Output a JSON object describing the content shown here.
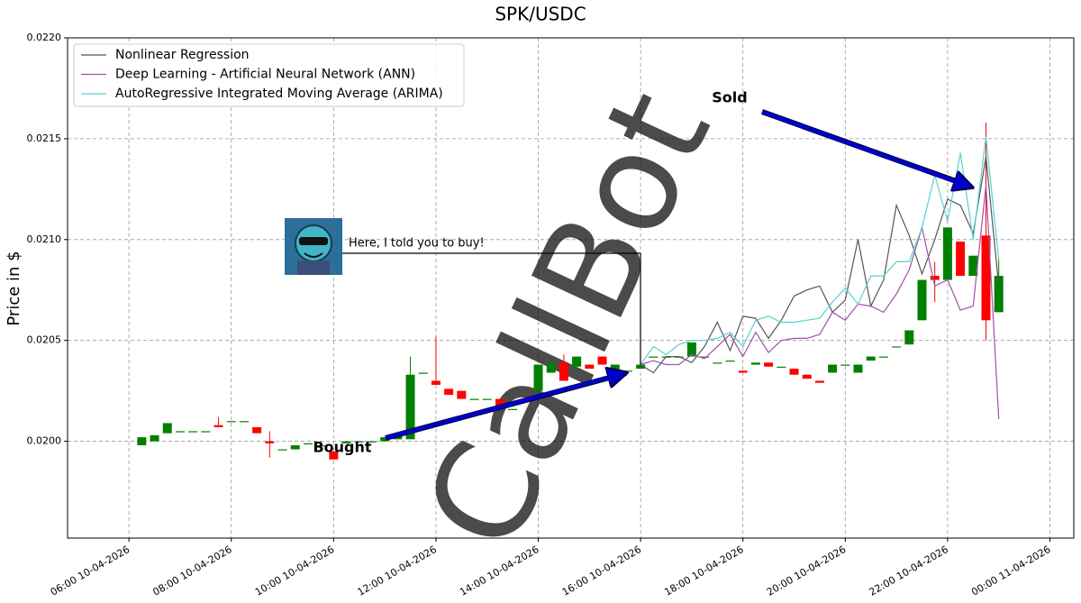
{
  "chart_data": {
    "type": "candlestick",
    "title": "SPK/USDC",
    "y_label": "Price in $",
    "x": [
      "06:15 10-04-2026",
      "06:30 10-04-2026",
      "06:45 10-04-2026",
      "07:00 10-04-2026",
      "07:15 10-04-2026",
      "07:30 10-04-2026",
      "07:45 10-04-2026",
      "08:00 10-04-2026",
      "08:15 10-04-2026",
      "08:30 10-04-2026",
      "08:45 10-04-2026",
      "09:00 10-04-2026",
      "09:15 10-04-2026",
      "09:30 10-04-2026",
      "09:45 10-04-2026",
      "10:00 10-04-2026",
      "10:15 10-04-2026",
      "10:30 10-04-2026",
      "10:45 10-04-2026",
      "11:00 10-04-2026",
      "11:15 10-04-2026",
      "11:30 10-04-2026",
      "11:45 10-04-2026",
      "12:00 10-04-2026",
      "12:15 10-04-2026",
      "12:30 10-04-2026",
      "12:45 10-04-2026",
      "13:00 10-04-2026",
      "13:15 10-04-2026",
      "13:30 10-04-2026",
      "13:45 10-04-2026",
      "14:00 10-04-2026",
      "14:15 10-04-2026",
      "14:30 10-04-2026",
      "14:45 10-04-2026",
      "15:00 10-04-2026",
      "15:15 10-04-2026",
      "15:30 10-04-2026",
      "15:45 10-04-2026",
      "16:00 10-04-2026",
      "16:15 10-04-2026",
      "16:30 10-04-2026",
      "16:45 10-04-2026",
      "17:00 10-04-2026",
      "17:15 10-04-2026",
      "17:30 10-04-2026",
      "17:45 10-04-2026",
      "18:00 10-04-2026",
      "18:15 10-04-2026",
      "18:30 10-04-2026",
      "18:45 10-04-2026",
      "19:00 10-04-2026",
      "19:15 10-04-2026",
      "19:30 10-04-2026",
      "19:45 10-04-2026",
      "20:00 10-04-2026",
      "20:15 10-04-2026",
      "20:30 10-04-2026",
      "20:45 10-04-2026",
      "21:00 10-04-2026",
      "21:15 10-04-2026",
      "21:30 10-04-2026",
      "21:45 10-04-2026",
      "22:00 10-04-2026",
      "22:15 10-04-2026",
      "22:30 10-04-2026",
      "22:45 10-04-2026",
      "23:00 10-04-2026"
    ],
    "open": [
      0.01998,
      0.02,
      0.02004,
      0.02005,
      0.02005,
      0.02005,
      0.02008,
      0.0201,
      0.0201,
      0.02007,
      0.02,
      0.01996,
      0.01996,
      0.01999,
      0.01998,
      0.01995,
      0.01999,
      0.02,
      0.02,
      0.02,
      0.02001,
      0.02001,
      0.02034,
      0.0203,
      0.02026,
      0.02025,
      0.02021,
      0.02021,
      0.02021,
      0.02016,
      0.02021,
      0.02025,
      0.02034,
      0.02039,
      0.02037,
      0.02038,
      0.02042,
      0.02034,
      0.02035,
      0.02036,
      0.02042,
      0.02042,
      0.02042,
      0.02042,
      0.02042,
      0.02039,
      0.0204,
      0.02035,
      0.02038,
      0.02039,
      0.02037,
      0.02036,
      0.02033,
      0.0203,
      0.02034,
      0.02038,
      0.02034,
      0.0204,
      0.02042,
      0.02047,
      0.02048,
      0.0206,
      0.02082,
      0.0208,
      0.02099,
      0.02082,
      0.02102,
      0.02064
    ],
    "high": [
      0.02002,
      0.02003,
      0.02009,
      0.02005,
      0.02005,
      0.02005,
      0.02012,
      0.0201,
      0.0201,
      0.02007,
      0.02005,
      0.01996,
      0.01998,
      0.01999,
      0.01998,
      0.01995,
      0.02,
      0.02,
      0.02,
      0.02002,
      0.02003,
      0.02042,
      0.02034,
      0.02052,
      0.02026,
      0.02025,
      0.02021,
      0.02021,
      0.02021,
      0.02016,
      0.02021,
      0.02038,
      0.02039,
      0.02043,
      0.02042,
      0.02038,
      0.02042,
      0.02038,
      0.02035,
      0.02038,
      0.02042,
      0.02042,
      0.02042,
      0.02049,
      0.02042,
      0.02039,
      0.0204,
      0.02035,
      0.02039,
      0.02039,
      0.02037,
      0.02036,
      0.02033,
      0.0203,
      0.02038,
      0.02038,
      0.02038,
      0.02042,
      0.02042,
      0.02047,
      0.02055,
      0.0208,
      0.02089,
      0.02106,
      0.02099,
      0.02092,
      0.02158,
      0.0209
    ],
    "low": [
      0.01998,
      0.02,
      0.02004,
      0.02005,
      0.02005,
      0.02005,
      0.02007,
      0.0201,
      0.0201,
      0.02004,
      0.01992,
      0.01996,
      0.01996,
      0.01999,
      0.01998,
      0.01991,
      0.01999,
      0.02,
      0.02,
      0.02,
      0.02001,
      0.02001,
      0.02034,
      0.02028,
      0.02023,
      0.02021,
      0.02021,
      0.02021,
      0.02017,
      0.02016,
      0.02021,
      0.02025,
      0.02034,
      0.0203,
      0.02037,
      0.02036,
      0.02038,
      0.02034,
      0.02035,
      0.02036,
      0.02042,
      0.02042,
      0.02042,
      0.02042,
      0.02042,
      0.02039,
      0.0204,
      0.02034,
      0.02038,
      0.02037,
      0.02037,
      0.02033,
      0.02031,
      0.02029,
      0.02034,
      0.02038,
      0.02034,
      0.0204,
      0.02042,
      0.02047,
      0.02048,
      0.0206,
      0.02069,
      0.0208,
      0.02082,
      0.02082,
      0.0205,
      0.02064
    ],
    "close": [
      0.02002,
      0.02003,
      0.02009,
      0.02005,
      0.02005,
      0.02005,
      0.02007,
      0.0201,
      0.0201,
      0.02004,
      0.01999,
      0.01996,
      0.01998,
      0.01999,
      0.01998,
      0.01991,
      0.02,
      0.02,
      0.02,
      0.02002,
      0.02003,
      0.02033,
      0.02034,
      0.02028,
      0.02023,
      0.02021,
      0.02021,
      0.02021,
      0.02017,
      0.02016,
      0.02021,
      0.02038,
      0.02039,
      0.0203,
      0.02042,
      0.02036,
      0.02038,
      0.02038,
      0.02035,
      0.02038,
      0.02042,
      0.02042,
      0.02042,
      0.02049,
      0.02042,
      0.02039,
      0.0204,
      0.02034,
      0.02039,
      0.02037,
      0.02037,
      0.02033,
      0.02031,
      0.02029,
      0.02038,
      0.02038,
      0.02038,
      0.02042,
      0.02042,
      0.02047,
      0.02055,
      0.0208,
      0.0208,
      0.02106,
      0.02082,
      0.02092,
      0.0206,
      0.02082
    ],
    "up_color": "#008000",
    "down_color": "#ff0000",
    "series": [
      {
        "name": "Nonlinear Regression",
        "color": "#555555",
        "values": [
          null,
          null,
          null,
          null,
          null,
          null,
          null,
          null,
          null,
          null,
          null,
          null,
          null,
          null,
          null,
          null,
          null,
          null,
          null,
          null,
          null,
          null,
          null,
          null,
          null,
          null,
          null,
          null,
          null,
          null,
          null,
          null,
          null,
          null,
          null,
          null,
          null,
          null,
          null,
          0.02038,
          0.02034,
          0.02042,
          0.02042,
          0.02039,
          0.02047,
          0.02059,
          0.02045,
          0.02062,
          0.02061,
          0.02051,
          0.0206,
          0.02072,
          0.02075,
          0.02077,
          0.02064,
          0.0207,
          0.021,
          0.02067,
          0.0208,
          0.02117,
          0.02102,
          0.02083,
          0.021,
          0.0212,
          0.02117,
          0.02103,
          0.02141,
          0.02077
        ]
      },
      {
        "name": "Deep Learning - Artificial Neural Network (ANN)",
        "color": "#a24fa8",
        "values": [
          null,
          null,
          null,
          null,
          null,
          null,
          null,
          null,
          null,
          null,
          null,
          null,
          null,
          null,
          null,
          null,
          null,
          null,
          null,
          null,
          null,
          null,
          null,
          null,
          null,
          null,
          null,
          null,
          null,
          null,
          null,
          null,
          null,
          null,
          null,
          null,
          null,
          null,
          null,
          0.02038,
          0.0204,
          0.02038,
          0.02038,
          0.02043,
          0.02041,
          0.02047,
          0.02053,
          0.02042,
          0.02054,
          0.02044,
          0.0205,
          0.02051,
          0.02051,
          0.02053,
          0.02064,
          0.0206,
          0.02068,
          0.02067,
          0.02064,
          0.02073,
          0.02085,
          0.02106,
          0.02077,
          0.0208,
          0.02065,
          0.02067,
          0.02127,
          0.02011
        ]
      },
      {
        "name": "AutoRegressive Integrated Moving Average (ARIMA)",
        "color": "#5fcfd0",
        "values": [
          null,
          null,
          null,
          null,
          null,
          null,
          null,
          null,
          null,
          null,
          null,
          null,
          null,
          null,
          null,
          null,
          null,
          null,
          null,
          null,
          null,
          null,
          null,
          null,
          null,
          null,
          null,
          null,
          null,
          null,
          null,
          null,
          null,
          null,
          null,
          null,
          null,
          null,
          null,
          0.02038,
          0.02047,
          0.02043,
          0.02048,
          0.0205,
          0.0205,
          0.02051,
          0.02054,
          0.02047,
          0.0206,
          0.02062,
          0.02059,
          0.02059,
          0.0206,
          0.02061,
          0.02069,
          0.02076,
          0.02068,
          0.02082,
          0.02082,
          0.02089,
          0.02089,
          0.02106,
          0.02132,
          0.02109,
          0.02143,
          0.021,
          0.02151,
          0.0209
        ]
      }
    ],
    "xlim": [
      "04:48 10-04-2026",
      "00:28 11-04-2026"
    ],
    "xticks": [
      "06:00 10-04-2026",
      "08:00 10-04-2026",
      "10:00 10-04-2026",
      "12:00 10-04-2026",
      "14:00 10-04-2026",
      "16:00 10-04-2026",
      "18:00 10-04-2026",
      "20:00 10-04-2026",
      "22:00 10-04-2026",
      "00:00 11-04-2026"
    ],
    "ylim": [
      0.01952,
      0.022
    ],
    "yticks": [
      {
        "value": 0.02,
        "label": "0.0200"
      },
      {
        "value": 0.0205,
        "label": "0.0205"
      },
      {
        "value": 0.021,
        "label": "0.0210"
      },
      {
        "value": 0.0215,
        "label": "0.0215"
      },
      {
        "value": 0.022,
        "label": "0.0220"
      }
    ],
    "grid": true,
    "legend": "upper left",
    "annotations": [
      "Sold",
      "Bought",
      "Here, I told you to buy!"
    ],
    "watermark": "CallBot"
  }
}
